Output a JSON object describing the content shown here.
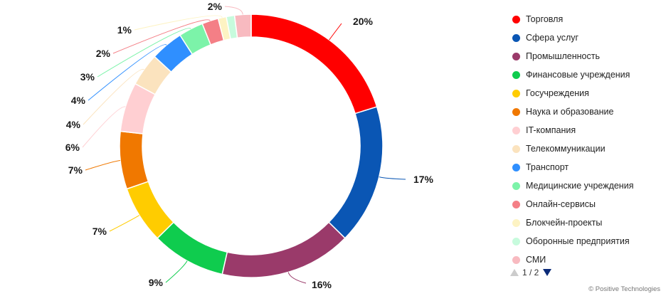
{
  "chart_data": {
    "type": "pie",
    "style": "donut",
    "categories": [
      "Торговля",
      "Сфера услуг",
      "Промышленность",
      "Финансовые учреждения",
      "Госучреждения",
      "Наука и образование",
      "IT-компания",
      "Телекоммуникации",
      "Транспорт",
      "Медицинские учреждения",
      "Онлайн-сервисы",
      "Блокчейн-проекты",
      "Оборонные предприятия",
      "СМИ"
    ],
    "values": [
      20,
      17,
      16,
      9,
      7,
      7,
      6,
      4,
      4,
      3,
      2,
      1,
      1,
      2
    ],
    "labels": [
      "20%",
      "17%",
      "16%",
      "9%",
      "7%",
      "7%",
      "6%",
      "4%",
      "4%",
      "3%",
      "2%",
      "1%",
      "",
      "2%"
    ],
    "colors": [
      "#ff0000",
      "#0a56b4",
      "#9a3a6a",
      "#0fcc4e",
      "#ffcc00",
      "#f07800",
      "#ffcfd2",
      "#fbe3be",
      "#2f8fff",
      "#7cf3a9",
      "#f47f86",
      "#fdf3c3",
      "#c7fbdd",
      "#f8bac0"
    ],
    "legend_position": "right"
  },
  "legend": {
    "pager": {
      "label": "1 / 2"
    }
  },
  "copyright": "© Positive Technologies"
}
